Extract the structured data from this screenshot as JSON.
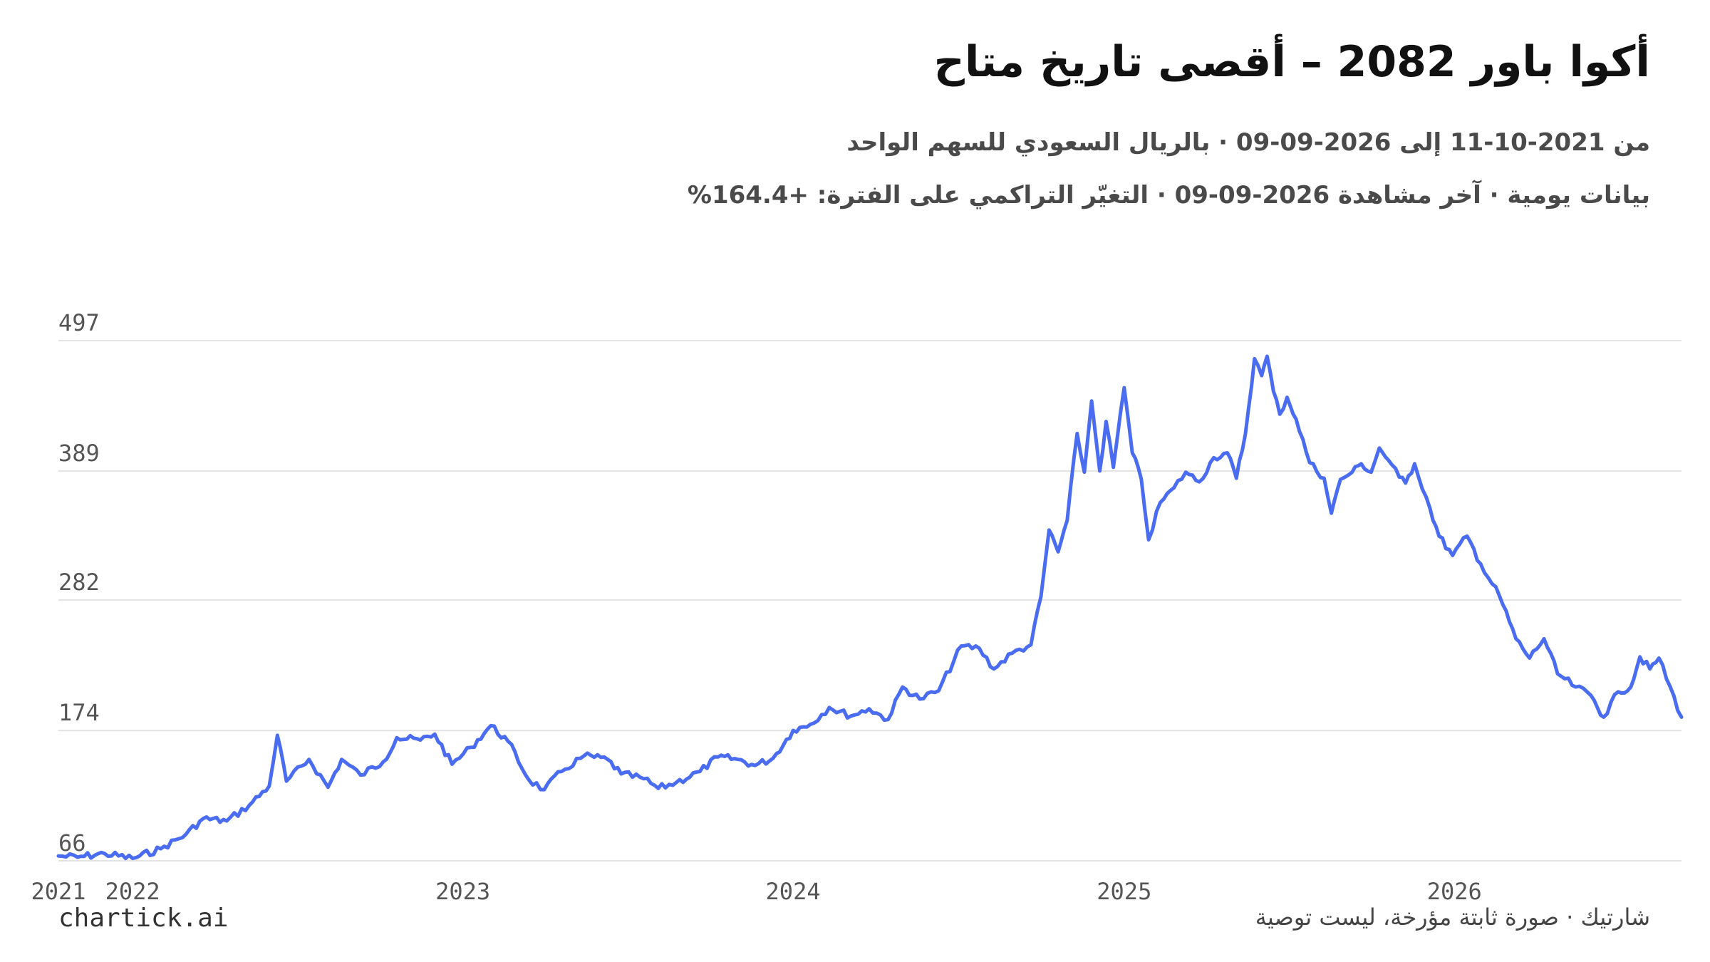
{
  "title": "أكوا باور 2082 – أقصى تاريخ متاح",
  "subtitle_line1": "من 2021-10-11 إلى 2026-09-09 · بالريال السعودي للسهم الواحد",
  "subtitle_line2": "بيانات يومية · آخر مشاهدة 2026-09-09 · التغيّر التراكمي على الفترة: +164.4%",
  "brand": "chartick.ai",
  "footer": "شارتيك · صورة ثابتة مؤرخة، ليست توصية",
  "colors": {
    "line": "#4a6cf0",
    "grid": "#e3e3e3",
    "tick_text": "#555555"
  },
  "chart_data": {
    "type": "line",
    "x_start": "2021-10-11",
    "x_end": "2026-09-09",
    "y_ticks": [
      66,
      174,
      282,
      389,
      497
    ],
    "ylim": [
      66,
      497
    ],
    "x_ticks": [
      "2021",
      "2022",
      "2023",
      "2024",
      "2025",
      "2026"
    ],
    "grid": true,
    "series": [
      {
        "points": [
          [
            "2021-10-11",
            70
          ],
          [
            "2021-11-01",
            69
          ],
          [
            "2021-12-01",
            72
          ],
          [
            "2022-01-01",
            68
          ],
          [
            "2022-02-01",
            76
          ],
          [
            "2022-03-01",
            88
          ],
          [
            "2022-03-20",
            101
          ],
          [
            "2022-04-15",
            99
          ],
          [
            "2022-05-10",
            112
          ],
          [
            "2022-06-01",
            128
          ],
          [
            "2022-06-10",
            170
          ],
          [
            "2022-06-20",
            132
          ],
          [
            "2022-07-15",
            150
          ],
          [
            "2022-08-05",
            127
          ],
          [
            "2022-08-20",
            150
          ],
          [
            "2022-09-10",
            137
          ],
          [
            "2022-10-05",
            148
          ],
          [
            "2022-10-20",
            168
          ],
          [
            "2022-11-15",
            166
          ],
          [
            "2022-12-01",
            171
          ],
          [
            "2022-12-20",
            146
          ],
          [
            "2023-01-10",
            160
          ],
          [
            "2023-02-01",
            178
          ],
          [
            "2023-02-20",
            165
          ],
          [
            "2023-03-15",
            133
          ],
          [
            "2023-04-01",
            125
          ],
          [
            "2023-04-20",
            140
          ],
          [
            "2023-05-15",
            153
          ],
          [
            "2023-06-10",
            150
          ],
          [
            "2023-06-25",
            138
          ],
          [
            "2023-07-20",
            134
          ],
          [
            "2023-08-05",
            126
          ],
          [
            "2023-08-25",
            131
          ],
          [
            "2023-09-20",
            140
          ],
          [
            "2023-10-10",
            152
          ],
          [
            "2023-11-01",
            150
          ],
          [
            "2023-11-20",
            145
          ],
          [
            "2023-12-10",
            151
          ],
          [
            "2024-01-01",
            174
          ],
          [
            "2024-01-20",
            179
          ],
          [
            "2024-02-10",
            193
          ],
          [
            "2024-03-05",
            186
          ],
          [
            "2024-03-25",
            192
          ],
          [
            "2024-04-15",
            183
          ],
          [
            "2024-05-01",
            210
          ],
          [
            "2024-05-20",
            200
          ],
          [
            "2024-06-10",
            207
          ],
          [
            "2024-07-05",
            244
          ],
          [
            "2024-07-25",
            242
          ],
          [
            "2024-08-10",
            225
          ],
          [
            "2024-08-30",
            238
          ],
          [
            "2024-09-20",
            245
          ],
          [
            "2024-10-01",
            285
          ],
          [
            "2024-10-10",
            340
          ],
          [
            "2024-10-20",
            322
          ],
          [
            "2024-10-30",
            348
          ],
          [
            "2024-11-10",
            420
          ],
          [
            "2024-11-18",
            388
          ],
          [
            "2024-11-26",
            447
          ],
          [
            "2024-12-05",
            389
          ],
          [
            "2024-12-12",
            430
          ],
          [
            "2024-12-20",
            392
          ],
          [
            "2025-01-01",
            458
          ],
          [
            "2025-01-10",
            404
          ],
          [
            "2025-01-20",
            382
          ],
          [
            "2025-01-28",
            332
          ],
          [
            "2025-02-10",
            363
          ],
          [
            "2025-02-25",
            375
          ],
          [
            "2025-03-10",
            388
          ],
          [
            "2025-03-25",
            380
          ],
          [
            "2025-04-10",
            400
          ],
          [
            "2025-04-25",
            404
          ],
          [
            "2025-05-05",
            383
          ],
          [
            "2025-05-15",
            420
          ],
          [
            "2025-05-25",
            482
          ],
          [
            "2025-06-02",
            468
          ],
          [
            "2025-06-08",
            484
          ],
          [
            "2025-06-15",
            455
          ],
          [
            "2025-06-22",
            436
          ],
          [
            "2025-06-30",
            450
          ],
          [
            "2025-07-10",
            432
          ],
          [
            "2025-07-25",
            396
          ],
          [
            "2025-08-10",
            383
          ],
          [
            "2025-08-18",
            354
          ],
          [
            "2025-08-28",
            382
          ],
          [
            "2025-09-10",
            388
          ],
          [
            "2025-09-20",
            395
          ],
          [
            "2025-10-01",
            388
          ],
          [
            "2025-10-10",
            408
          ],
          [
            "2025-10-20",
            398
          ],
          [
            "2025-11-01",
            384
          ],
          [
            "2025-11-08",
            379
          ],
          [
            "2025-11-18",
            395
          ],
          [
            "2025-12-05",
            358
          ],
          [
            "2025-12-15",
            335
          ],
          [
            "2025-12-30",
            319
          ],
          [
            "2026-01-15",
            335
          ],
          [
            "2026-01-30",
            312
          ],
          [
            "2026-02-20",
            285
          ],
          [
            "2026-03-10",
            250
          ],
          [
            "2026-03-25",
            234
          ],
          [
            "2026-04-10",
            250
          ],
          [
            "2026-04-25",
            221
          ],
          [
            "2026-05-15",
            210
          ],
          [
            "2026-06-01",
            203
          ],
          [
            "2026-06-15",
            185
          ],
          [
            "2026-07-01",
            206
          ],
          [
            "2026-07-15",
            210
          ],
          [
            "2026-07-25",
            235
          ],
          [
            "2026-08-05",
            225
          ],
          [
            "2026-08-15",
            234
          ],
          [
            "2026-09-09",
            185
          ]
        ]
      }
    ]
  }
}
